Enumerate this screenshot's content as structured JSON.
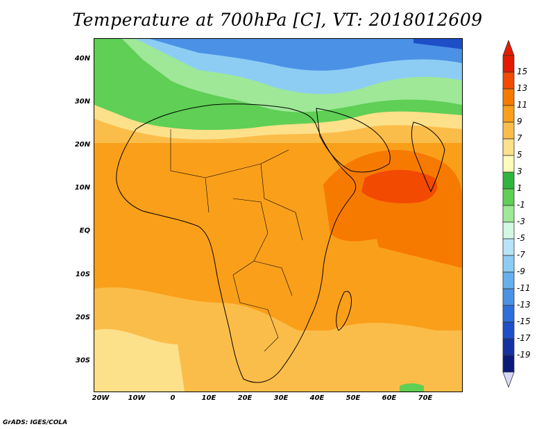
{
  "title": "Temperature at 700hPa [C], VT: 2018012609",
  "footer": "GrADS: IGES/COLA",
  "lat_labels": [
    "40N",
    "30N",
    "20N",
    "10N",
    "EQ",
    "10S",
    "20S",
    "30S"
  ],
  "lon_labels": [
    "20W",
    "10W",
    "0",
    "10E",
    "20E",
    "30E",
    "40E",
    "50E",
    "60E",
    "70E"
  ],
  "colorbar": {
    "labels": [
      "15",
      "13",
      "11",
      "9",
      "7",
      "5",
      "3",
      "1",
      "-1",
      "-3",
      "-5",
      "-7",
      "-9",
      "-11",
      "-13",
      "-15",
      "-17",
      "-19"
    ],
    "colors": [
      "#e41a00",
      "#f24a00",
      "#f77a00",
      "#fa9f1a",
      "#fbbd49",
      "#fde08a",
      "#fdfcba",
      "#2fb53e",
      "#5fcf55",
      "#9ee898",
      "#d2f7e3",
      "#b8e4f7",
      "#8dcdf4",
      "#66b0ee",
      "#4b91e6",
      "#2f6fdc",
      "#1e4fc8",
      "#1532a3",
      "#0b1a7a"
    ],
    "top_arrow_color": "#e41a00",
    "bottom_arrow_color": "#d8d8f8"
  }
}
